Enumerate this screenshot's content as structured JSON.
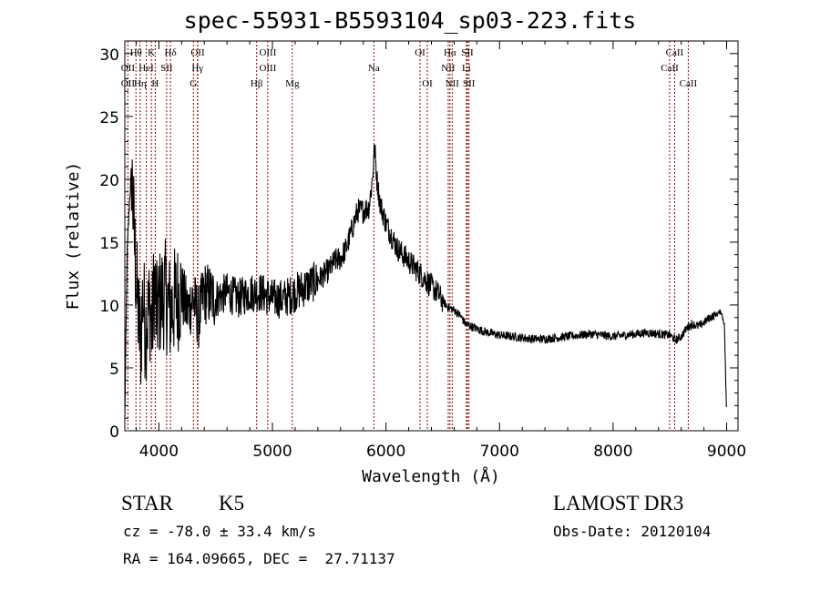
{
  "chart_data": {
    "type": "line",
    "title": "spec-55931-B5593104_sp03-223.fits",
    "xlabel": "Wavelength (Å)",
    "ylabel": "Flux (relative)",
    "xlim": [
      3700,
      9100
    ],
    "ylim": [
      0,
      31
    ],
    "xticks": [
      4000,
      5000,
      6000,
      7000,
      8000,
      9000
    ],
    "yticks": [
      0,
      5,
      10,
      15,
      20,
      25,
      30
    ],
    "series": [
      {
        "name": "spectrum",
        "x": [
          3700,
          3720,
          3740,
          3760,
          3780,
          3800,
          3820,
          3840,
          3860,
          3880,
          3900,
          3920,
          3940,
          3960,
          3980,
          4000,
          4050,
          4100,
          4150,
          4200,
          4250,
          4300,
          4350,
          4400,
          4500,
          4600,
          4700,
          4800,
          4900,
          5000,
          5100,
          5200,
          5300,
          5400,
          5500,
          5550,
          5600,
          5650,
          5700,
          5750,
          5800,
          5850,
          5880,
          5900,
          5920,
          5950,
          6000,
          6050,
          6100,
          6150,
          6200,
          6250,
          6300,
          6350,
          6400,
          6450,
          6500,
          6550,
          6600,
          6650,
          6700,
          6750,
          6800,
          6900,
          7000,
          7100,
          7200,
          7300,
          7400,
          7500,
          7600,
          7700,
          7800,
          7900,
          8000,
          8100,
          8200,
          8300,
          8400,
          8500,
          8550,
          8600,
          8650,
          8700,
          8750,
          8800,
          8850,
          8900,
          8950,
          8980,
          9000
        ],
        "y": [
          1,
          14,
          18,
          21,
          16,
          12,
          9,
          7,
          11,
          8,
          9,
          10,
          8,
          12,
          9,
          10,
          11,
          9.5,
          10.5,
          11,
          9.5,
          10.5,
          9,
          11,
          10.5,
          11,
          10.5,
          11,
          11,
          10.5,
          10.5,
          11,
          11.5,
          12,
          12.8,
          13.5,
          13.7,
          14.5,
          16,
          17.5,
          17.5,
          17.8,
          20,
          22.5,
          20,
          18,
          16.5,
          15.5,
          14.5,
          14,
          13.5,
          13,
          12.5,
          12,
          11.5,
          11,
          10.3,
          9.8,
          9.6,
          9.2,
          8.5,
          8.3,
          8.1,
          7.8,
          7.6,
          7.5,
          7.4,
          7.3,
          7.3,
          7.4,
          7.5,
          7.6,
          7.7,
          7.6,
          7.5,
          7.6,
          7.7,
          7.8,
          7.7,
          7.6,
          7.2,
          7.5,
          8.2,
          8.5,
          8.3,
          8.6,
          9.0,
          9.2,
          9.5,
          8.5,
          1
        ]
      }
    ],
    "lines": [
      {
        "label": "Hθ",
        "x": 3798,
        "row": 1
      },
      {
        "label": "K",
        "x": 3934,
        "row": 1
      },
      {
        "label": "Hδ",
        "x": 4102,
        "row": 1
      },
      {
        "label": "OII",
        "x": 4342,
        "row": 1
      },
      {
        "label": "OIII",
        "x": 4959,
        "row": 1
      },
      {
        "label": "OI",
        "x": 6300,
        "row": 1
      },
      {
        "label": "Hα",
        "x": 6563,
        "row": 1
      },
      {
        "label": "SII",
        "x": 6717,
        "row": 1
      },
      {
        "label": "CaII",
        "x": 8542,
        "row": 1
      },
      {
        "label": "OII",
        "x": 3727,
        "row": 2
      },
      {
        "label": "HeI",
        "x": 3889,
        "row": 2
      },
      {
        "label": "SII",
        "x": 4068,
        "row": 2
      },
      {
        "label": "Hγ",
        "x": 4340,
        "row": 2
      },
      {
        "label": "OIII",
        "x": 4959,
        "row": 2
      },
      {
        "label": "Na",
        "x": 5893,
        "row": 2
      },
      {
        "label": "NII",
        "x": 6548,
        "row": 2
      },
      {
        "label": "Li",
        "x": 6708,
        "row": 2
      },
      {
        "label": "CaII",
        "x": 8498,
        "row": 2
      },
      {
        "label": "OII",
        "x": 3727,
        "row": 3
      },
      {
        "label": "Hη",
        "x": 3835,
        "row": 3
      },
      {
        "label": "H",
        "x": 3968,
        "row": 3
      },
      {
        "label": "G",
        "x": 4304,
        "row": 3
      },
      {
        "label": "Hβ",
        "x": 4861,
        "row": 3
      },
      {
        "label": "Mg",
        "x": 5175,
        "row": 3
      },
      {
        "label": "OI",
        "x": 6364,
        "row": 3
      },
      {
        "label": "NII",
        "x": 6583,
        "row": 3
      },
      {
        "label": "SII",
        "x": 6731,
        "row": 3
      },
      {
        "label": "CaII",
        "x": 8662,
        "row": 3
      }
    ],
    "line_color": "#8b0000"
  },
  "info": {
    "object_class": "STAR",
    "subclass": "K5",
    "cz": "cz = -78.0 ± 33.4 km/s",
    "coords": "RA = 164.09665, DEC =  27.71137",
    "survey": "LAMOST DR3",
    "obs_date": "Obs-Date: 20120104"
  }
}
